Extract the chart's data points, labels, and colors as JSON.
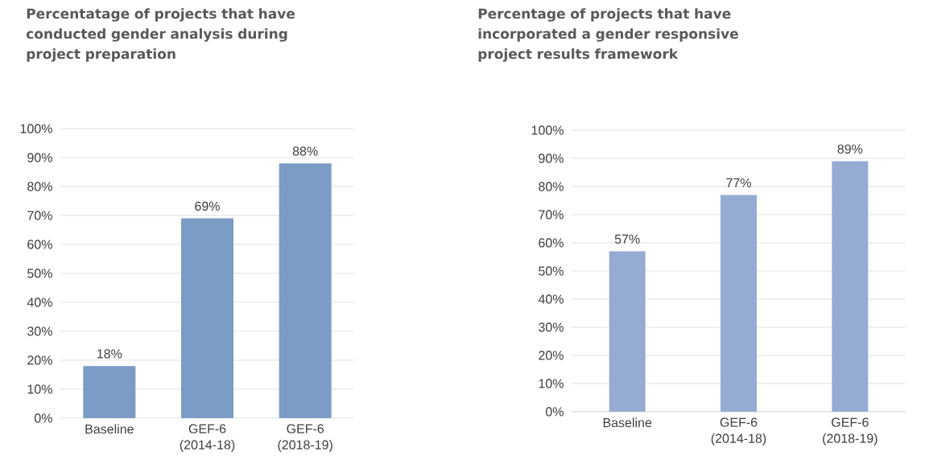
{
  "chart_data": [
    {
      "type": "bar",
      "title": "Percentatage of projects that have conducted gender analysis during project preparation",
      "categories": [
        "Baseline",
        "GEF-6 (2014-18)",
        "GEF-6 (2018-19)"
      ],
      "values": [
        18,
        69,
        88
      ],
      "value_labels": [
        "18%",
        "69%",
        "88%"
      ],
      "color": "#7b9cc4",
      "ylim": [
        0,
        100
      ],
      "yticks": [
        {
          "value": 0,
          "label": "0%"
        },
        {
          "value": 10,
          "label": "10%"
        },
        {
          "value": 20,
          "label": "20%"
        },
        {
          "value": 30,
          "label": "30%"
        },
        {
          "value": 40,
          "label": "40%"
        },
        {
          "value": 50,
          "label": "50%"
        },
        {
          "value": 60,
          "label": "60%"
        },
        {
          "value": 70,
          "label": "70%"
        },
        {
          "value": 80,
          "label": "80%"
        },
        {
          "value": 90,
          "label": "90%"
        },
        {
          "value": 100,
          "label": "100%"
        }
      ],
      "grid": "y"
    },
    {
      "type": "bar",
      "title": "Percentage of projects that have incorporated a gender responsive project results framework",
      "categories": [
        "Baseline",
        "GEF-6 (2014-18)",
        "GEF-6 (2018-19)"
      ],
      "values": [
        57,
        77,
        89
      ],
      "value_labels": [
        "57%",
        "77%",
        "89%"
      ],
      "color": "#95abd4",
      "ylim": [
        0,
        100
      ],
      "yticks": [
        {
          "value": 0,
          "label": "0%"
        },
        {
          "value": 10,
          "label": "10%"
        },
        {
          "value": 20,
          "label": "20%"
        },
        {
          "value": 30,
          "label": "30%"
        },
        {
          "value": 40,
          "label": "40%"
        },
        {
          "value": 50,
          "label": "50%"
        },
        {
          "value": 60,
          "label": "60%"
        },
        {
          "value": 70,
          "label": "70%"
        },
        {
          "value": 80,
          "label": "80%"
        },
        {
          "value": 90,
          "label": "90%"
        },
        {
          "value": 100,
          "label": "100%"
        }
      ],
      "grid": "y"
    }
  ]
}
